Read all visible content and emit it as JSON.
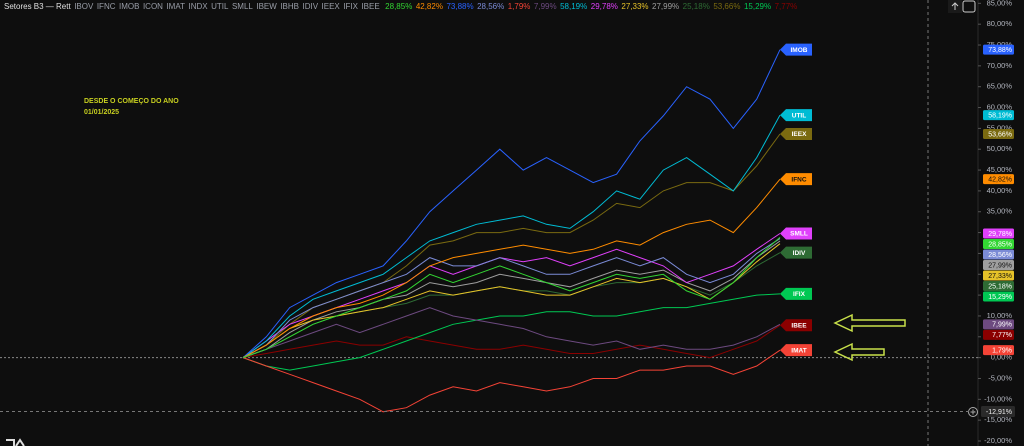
{
  "chart_data": {
    "type": "line",
    "title": "Setores B3 — Rett",
    "annotations": [
      "DESDE O COMEÇO DO ANO",
      "01/01/2025"
    ],
    "ylim": [
      -21.2,
      85.8
    ],
    "yticks": [
      {
        "value": -20,
        "label": "-20,00%"
      },
      {
        "value": -15,
        "label": "-15,00%"
      },
      {
        "value": -10,
        "label": "-10,00%"
      },
      {
        "value": -5,
        "label": "-5,00%"
      },
      {
        "value": 0,
        "label": "0,00%"
      },
      {
        "value": 5,
        "label": "5,00%"
      },
      {
        "value": 10,
        "label": "10,00%"
      },
      {
        "value": 15,
        "label": "15,00%"
      },
      {
        "value": 20,
        "label": "20,00%"
      },
      {
        "value": 25,
        "label": "25,00%"
      },
      {
        "value": 30,
        "label": "30,00%"
      },
      {
        "value": 35,
        "label": "35,00%"
      },
      {
        "value": 40,
        "label": "40,00%"
      },
      {
        "value": 45,
        "label": "45,00%"
      },
      {
        "value": 50,
        "label": "50,00%"
      },
      {
        "value": 55,
        "label": "55,00%"
      },
      {
        "value": 60,
        "label": "60,00%"
      },
      {
        "value": 65,
        "label": "65,00%"
      },
      {
        "value": 70,
        "label": "70,00%"
      },
      {
        "value": 75,
        "label": "75,00%"
      },
      {
        "value": 80,
        "label": "80,00%"
      },
      {
        "value": 85,
        "label": "85,00%"
      }
    ],
    "grid": false,
    "crosshair": {
      "value": -12.91,
      "label": "-12,91%"
    },
    "series": [
      {
        "name": "IBOV",
        "color": "#33d633",
        "flag": false,
        "values": [
          0,
          2,
          5,
          8,
          10,
          12,
          14,
          16,
          20,
          18,
          20,
          22,
          20,
          18,
          16,
          18,
          20,
          19,
          20,
          16,
          14,
          18,
          24,
          28.85
        ],
        "value_labels": [
          null,
          null,
          null,
          null,
          null,
          null,
          null,
          null,
          null,
          null,
          null,
          null,
          null,
          null,
          null,
          null,
          null,
          null,
          null,
          null,
          null,
          null,
          null,
          "28,85%"
        ]
      },
      {
        "name": "IFNC",
        "color": "#ff8c00",
        "flag": true,
        "values": [
          0,
          3,
          7,
          10,
          12,
          13,
          15,
          18,
          22,
          24,
          25,
          26,
          27,
          26,
          25,
          26,
          28,
          27,
          30,
          32,
          33,
          30,
          36,
          42.82
        ],
        "value_labels": [
          null,
          null,
          null,
          null,
          null,
          null,
          null,
          null,
          null,
          null,
          null,
          null,
          null,
          null,
          null,
          null,
          null,
          null,
          null,
          null,
          null,
          null,
          null,
          "42,82%"
        ]
      },
      {
        "name": "IMOB",
        "color": "#2962ff",
        "flag": true,
        "values": [
          0,
          5,
          12,
          15,
          18,
          20,
          22,
          28,
          35,
          40,
          45,
          50,
          45,
          48,
          45,
          42,
          44,
          52,
          58,
          65,
          62,
          55,
          62,
          73.88
        ],
        "value_labels": [
          null,
          null,
          null,
          null,
          null,
          null,
          null,
          null,
          null,
          null,
          null,
          null,
          null,
          null,
          null,
          null,
          null,
          null,
          null,
          null,
          null,
          null,
          null,
          "73,88%"
        ]
      },
      {
        "name": "ICON",
        "color": "#7b8bd6",
        "flag": false,
        "values": [
          0,
          3,
          9,
          12,
          14,
          16,
          18,
          20,
          24,
          22,
          22,
          24,
          22,
          20,
          20,
          22,
          24,
          22,
          24,
          20,
          18,
          20,
          25,
          28.56
        ],
        "value_labels": [
          null,
          null,
          null,
          null,
          null,
          null,
          null,
          null,
          null,
          null,
          null,
          null,
          null,
          null,
          null,
          null,
          null,
          null,
          null,
          null,
          null,
          null,
          null,
          "28,56%"
        ]
      },
      {
        "name": "IMAT",
        "color": "#f44336",
        "flag": true,
        "values": [
          0,
          -2,
          -4,
          -6,
          -8,
          -10,
          -13,
          -12,
          -9,
          -7,
          -8,
          -6,
          -7,
          -8,
          -7,
          -5,
          -5,
          -3,
          -3,
          -2,
          -2,
          -4,
          -2,
          1.79
        ],
        "value_labels": [
          null,
          null,
          null,
          null,
          null,
          null,
          null,
          null,
          null,
          null,
          null,
          null,
          null,
          null,
          null,
          null,
          null,
          null,
          null,
          null,
          null,
          null,
          null,
          "1,79%"
        ]
      },
      {
        "name": "INDX",
        "color": "#6d4a80",
        "flag": false,
        "values": [
          0,
          2,
          4,
          6,
          8,
          6,
          8,
          10,
          12,
          10,
          9,
          8,
          7,
          5,
          4,
          3,
          4,
          2,
          3,
          2,
          2,
          3,
          5,
          7.99
        ],
        "value_labels": [
          null,
          null,
          null,
          null,
          null,
          null,
          null,
          null,
          null,
          null,
          null,
          null,
          null,
          null,
          null,
          null,
          null,
          null,
          null,
          null,
          null,
          null,
          null,
          "7,99%"
        ]
      },
      {
        "name": "UTIL",
        "color": "#00bcd4",
        "flag": true,
        "values": [
          0,
          4,
          10,
          14,
          16,
          18,
          20,
          24,
          28,
          30,
          32,
          33,
          34,
          32,
          31,
          35,
          40,
          38,
          45,
          48,
          44,
          40,
          48,
          58.19
        ],
        "value_labels": [
          null,
          null,
          null,
          null,
          null,
          null,
          null,
          null,
          null,
          null,
          null,
          null,
          null,
          null,
          null,
          null,
          null,
          null,
          null,
          null,
          null,
          null,
          null,
          "58,19%"
        ]
      },
      {
        "name": "SMLL",
        "color": "#e040fb",
        "flag": true,
        "values": [
          0,
          4,
          8,
          10,
          12,
          14,
          16,
          18,
          22,
          20,
          22,
          24,
          23,
          24,
          22,
          24,
          26,
          24,
          22,
          18,
          20,
          22,
          26,
          29.78
        ],
        "value_labels": [
          null,
          null,
          null,
          null,
          null,
          null,
          null,
          null,
          null,
          null,
          null,
          null,
          null,
          null,
          null,
          null,
          null,
          null,
          null,
          null,
          null,
          null,
          null,
          "29,78%"
        ]
      },
      {
        "name": "IBEW",
        "color": "#e6c229",
        "flag": false,
        "values": [
          0,
          3,
          7,
          9,
          10,
          11,
          12,
          14,
          16,
          15,
          16,
          17,
          16,
          15,
          15,
          17,
          19,
          18,
          19,
          17,
          14,
          18,
          23,
          27.33
        ],
        "value_labels": [
          null,
          null,
          null,
          null,
          null,
          null,
          null,
          null,
          null,
          null,
          null,
          null,
          null,
          null,
          null,
          null,
          null,
          null,
          null,
          null,
          null,
          null,
          null,
          "27,33%"
        ]
      },
      {
        "name": "IBHB",
        "color": "#9e9e9e",
        "flag": false,
        "values": [
          0,
          2,
          6,
          9,
          11,
          12,
          14,
          15,
          18,
          17,
          18,
          20,
          19,
          18,
          17,
          19,
          21,
          20,
          21,
          18,
          16,
          19,
          24,
          27.99
        ],
        "value_labels": [
          null,
          null,
          null,
          null,
          null,
          null,
          null,
          null,
          null,
          null,
          null,
          null,
          null,
          null,
          null,
          null,
          null,
          null,
          null,
          null,
          null,
          null,
          null,
          "27,99%"
        ]
      },
      {
        "name": "IDIV",
        "color": "#2e6b34",
        "flag": true,
        "values": [
          0,
          2,
          5,
          8,
          10,
          11,
          12,
          13,
          15,
          15,
          16,
          17,
          16,
          16,
          15,
          17,
          18,
          18,
          19,
          17,
          15,
          18,
          22,
          25.18
        ],
        "value_labels": [
          null,
          null,
          null,
          null,
          null,
          null,
          null,
          null,
          null,
          null,
          null,
          null,
          null,
          null,
          null,
          null,
          null,
          null,
          null,
          null,
          null,
          null,
          null,
          "25,18%"
        ]
      },
      {
        "name": "IEEX",
        "color": "#7a6a10",
        "flag": true,
        "values": [
          0,
          3,
          8,
          12,
          14,
          16,
          18,
          22,
          27,
          28,
          30,
          30,
          31,
          30,
          30,
          33,
          37,
          36,
          40,
          42,
          42,
          40,
          46,
          53.66
        ],
        "value_labels": [
          null,
          null,
          null,
          null,
          null,
          null,
          null,
          null,
          null,
          null,
          null,
          null,
          null,
          null,
          null,
          null,
          null,
          null,
          null,
          null,
          null,
          null,
          null,
          "53,66%"
        ]
      },
      {
        "name": "IFIX",
        "color": "#00c853",
        "flag": true,
        "values": [
          0,
          -2,
          -3,
          -2,
          -1,
          0,
          2,
          4,
          6,
          8,
          9,
          10,
          10,
          11,
          11,
          10,
          10,
          11,
          12,
          12,
          13,
          14,
          15,
          15.29
        ],
        "value_labels": [
          null,
          null,
          null,
          null,
          null,
          null,
          null,
          null,
          null,
          null,
          null,
          null,
          null,
          null,
          null,
          null,
          null,
          null,
          null,
          null,
          null,
          null,
          null,
          "15,29%"
        ]
      },
      {
        "name": "IBEE",
        "color": "#8b0000",
        "flag": true,
        "values": [
          0,
          1,
          2,
          3,
          4,
          3,
          3,
          5,
          4,
          3,
          2,
          2,
          3,
          2,
          1,
          1,
          2,
          3,
          2,
          1,
          0,
          2,
          4,
          7.77
        ],
        "value_labels": [
          null,
          null,
          null,
          null,
          null,
          null,
          null,
          null,
          null,
          null,
          null,
          null,
          null,
          null,
          null,
          null,
          null,
          null,
          null,
          null,
          null,
          null,
          null,
          "7,77%"
        ]
      }
    ]
  }
}
